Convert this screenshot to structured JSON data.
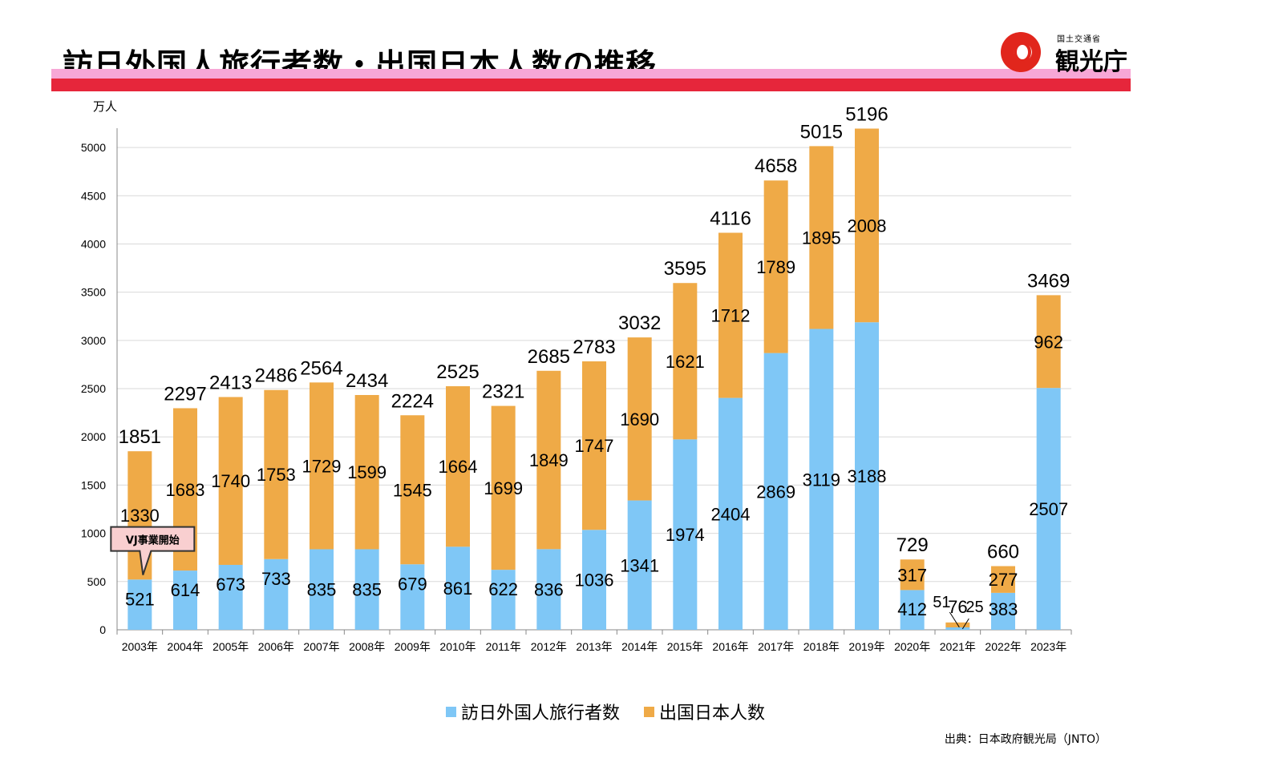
{
  "title": "訪日外国人旅行者数・出国日本人数の推移",
  "logo": {
    "agency_small": "国土交通省",
    "agency": "観光庁"
  },
  "source": "出典：日本政府観光局（JNTO）",
  "colors": {
    "inbound": "#7fc7f6",
    "outbound": "#efaa47",
    "title_band_pink": "#f7a7d6",
    "title_band_red": "#e6263b"
  },
  "chart_data": {
    "type": "bar",
    "stacked": true,
    "unit_label": "万人",
    "categories": [
      "2003年",
      "2004年",
      "2005年",
      "2006年",
      "2007年",
      "2008年",
      "2009年",
      "2010年",
      "2011年",
      "2012年",
      "2013年",
      "2014年",
      "2015年",
      "2016年",
      "2017年",
      "2018年",
      "2019年",
      "2020年",
      "2021年",
      "2022年",
      "2023年"
    ],
    "series": [
      {
        "name": "訪日外国人旅行者数",
        "values": [
          521,
          614,
          673,
          733,
          835,
          835,
          679,
          861,
          622,
          836,
          1036,
          1341,
          1974,
          2404,
          2869,
          3119,
          3188,
          412,
          25,
          383,
          2507
        ]
      },
      {
        "name": "出国日本人数",
        "values": [
          1330,
          1683,
          1740,
          1753,
          1729,
          1599,
          1545,
          1664,
          1699,
          1849,
          1747,
          1690,
          1621,
          1712,
          1789,
          1895,
          2008,
          317,
          51,
          277,
          962
        ]
      }
    ],
    "totals": [
      1851,
      2297,
      2413,
      2486,
      2564,
      2434,
      2224,
      2525,
      2321,
      2685,
      2783,
      3032,
      3595,
      4116,
      4658,
      5015,
      5196,
      729,
      76,
      660,
      3469
    ],
    "ylim": [
      0,
      5200
    ],
    "yticks": [
      0,
      500,
      1000,
      1500,
      2000,
      2500,
      3000,
      3500,
      4000,
      4500,
      5000
    ],
    "grid": true,
    "legend_position": "bottom",
    "annotation": {
      "text": "VJ事業開始",
      "category": "2003年"
    }
  }
}
